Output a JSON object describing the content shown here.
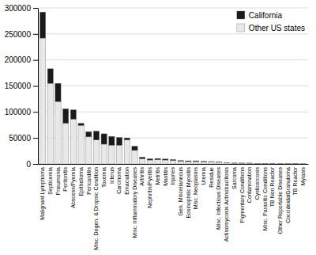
{
  "chart_data": {
    "type": "bar",
    "stacked": true,
    "grid": true,
    "legend": "upper right",
    "categories": [
      "Malignant Lymphoma",
      "Septicemia",
      "Pneumonia",
      "Peritonitis",
      "Abscess/Pyemia",
      "Epithelioma",
      "Pericarditis",
      "Misc. Degen. & Dropsic Condition",
      "Toxemia",
      "Icterus",
      "Carcinoma",
      "Emaciation",
      "Misc. Inflammatory Diseases",
      "Arthritis",
      "Nephritis/Pyelitis",
      "Metritis",
      "Mastitis",
      "Injuries",
      "Gen. Miscellaneous",
      "Eosinophilic Myositis",
      "Misc. Neoplasms",
      "Uremia",
      "Residue",
      "Misc. Infectious Diseases",
      "Actinomycosis Actinobacillosis",
      "Sarcoma",
      "Pigmentary Conditions",
      "Contamination",
      "Cysticercosis",
      "Misc. Parasitic Conditions",
      "TB Non Reactor",
      "Other Reportable Diseases",
      "CoccidoidalGranuloma",
      "TB Reactor",
      "Myiasis"
    ],
    "series": [
      {
        "name": "Other US states",
        "color": "#e8e8e8",
        "values": [
          242000,
          155000,
          120000,
          78000,
          86000,
          74000,
          52000,
          46000,
          38000,
          36000,
          36000,
          46000,
          26000,
          10000,
          7500,
          8000,
          7500,
          6500,
          5000,
          4500,
          4500,
          4000,
          4200,
          3200,
          1800,
          1400,
          1400,
          1400,
          900,
          900,
          900,
          400,
          400,
          400,
          250
        ]
      },
      {
        "name": "California",
        "color": "#1a1a1a",
        "values": [
          50000,
          28000,
          35000,
          28000,
          18000,
          4000,
          10000,
          17000,
          20000,
          17000,
          15000,
          4000,
          8000,
          3000,
          2500,
          2500,
          2000,
          2000,
          1500,
          1500,
          1500,
          1200,
          500,
          800,
          400,
          400,
          300,
          300,
          300,
          200,
          200,
          200,
          100,
          100,
          50
        ]
      }
    ],
    "ylim": [
      0,
      300000
    ],
    "yticks": [
      0,
      50000,
      100000,
      150000,
      200000,
      250000,
      300000
    ]
  }
}
